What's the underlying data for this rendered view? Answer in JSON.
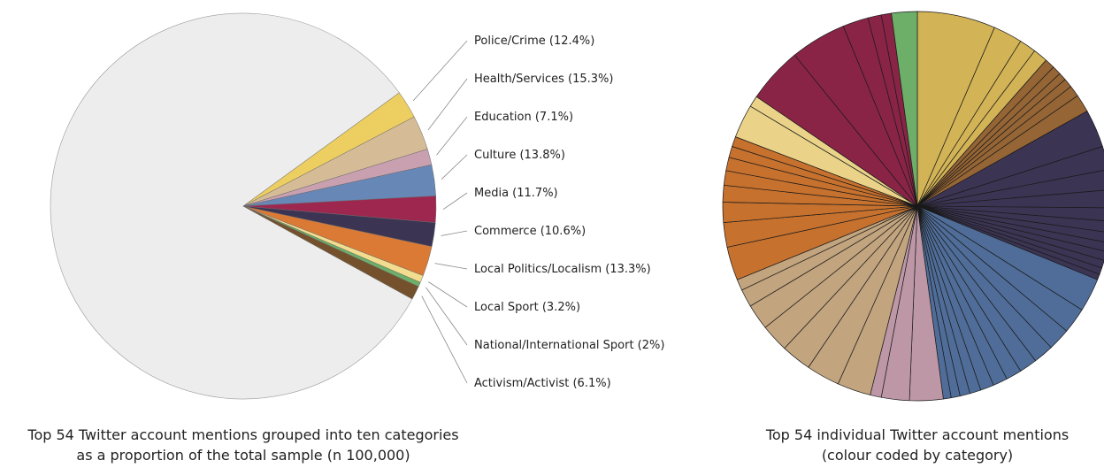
{
  "chart_data": [
    {
      "type": "pie",
      "title": "Top 54 Twitter account mentions grouped into ten categories as a proportion of the total sample (n 100,000)",
      "caption_lines": [
        "Top 54 Twitter account mentions grouped into ten categories",
        "as a proportion of the total sample (n 100,000)"
      ],
      "slices": [
        {
          "label": "Police/Crime (12.4%)",
          "category": "Police/Crime",
          "percent_of_top54": 12.4,
          "color": "#EDCE60"
        },
        {
          "label": "Health/Services (15.3%)",
          "category": "Health/Services",
          "percent_of_top54": 15.3,
          "color": "#D6BC96"
        },
        {
          "label": "Education (7.1%)",
          "category": "Education",
          "percent_of_top54": 7.1,
          "color": "#C9A0B0"
        },
        {
          "label": "Culture (13.8%)",
          "category": "Culture",
          "percent_of_top54": 13.8,
          "color": "#6787B7"
        },
        {
          "label": "Media (11.7%)",
          "category": "Media",
          "percent_of_top54": 11.7,
          "color": "#9E2750"
        },
        {
          "label": "Commerce (10.6%)",
          "category": "Commerce",
          "percent_of_top54": 10.6,
          "color": "#3C3453"
        },
        {
          "label": "Local Politics/Localism (13.3%)",
          "category": "Local Politics/Localism",
          "percent_of_top54": 13.3,
          "color": "#DB7A35"
        },
        {
          "label": "Local Sport (3.2%)",
          "category": "Local Sport",
          "percent_of_top54": 3.2,
          "color": "#F2DC8E"
        },
        {
          "label": "National/International Sport (2%)",
          "category": "National/International Sport",
          "percent_of_top54": 2.0,
          "color": "#6DAE68"
        },
        {
          "label": "Activism/Activist (6.1%)",
          "category": "Activism/Activist",
          "percent_of_top54": 6.1,
          "color": "#74512C"
        }
      ],
      "top54_share_of_total_percent": 18,
      "remainder_color": "#EDEDED"
    },
    {
      "type": "pie",
      "title": "Top 54 individual Twitter account mentions (colour coded by category)",
      "caption_lines": [
        "Top 54 individual Twitter account mentions",
        "(colour coded by category)"
      ],
      "groups": [
        {
          "category": "Police/Crime",
          "color": "#D2B356",
          "accounts": [
            7.0,
            2.6,
            1.5,
            1.3
          ]
        },
        {
          "category": "Activism/Activist",
          "color": "#956535",
          "accounts": [
            0.9,
            0.8,
            0.7,
            0.8,
            1.0,
            1.6
          ]
        },
        {
          "category": "Commerce",
          "color": "#3B3453",
          "accounts": [
            3.4,
            2.1,
            1.8,
            1.6,
            1.2,
            1.0,
            0.9,
            0.8,
            0.8,
            0.7,
            0.6,
            0.5
          ]
        },
        {
          "category": "Culture",
          "color": "#4F6D98",
          "accounts": [
            3.0,
            2.3,
            2.0,
            1.8,
            1.6,
            1.4,
            1.3,
            1.2,
            1.0,
            0.9,
            0.8,
            0.7
          ]
        },
        {
          "category": "Education",
          "color": "#BD97A6",
          "accounts": [
            3.0,
            2.5,
            1.0
          ]
        },
        {
          "category": "Health/Services",
          "color": "#C2A47E",
          "accounts": [
            3.0,
            3.0,
            2.7,
            2.5,
            2.3,
            1.6,
            1.0
          ]
        },
        {
          "category": "Local Politics/Localism",
          "color": "#C6712E",
          "accounts": [
            3.0,
            2.2,
            1.8,
            1.5,
            1.3,
            1.2,
            1.0,
            0.9
          ]
        },
        {
          "category": "Local Sport",
          "color": "#EAD389",
          "accounts": [
            3.0,
            1.0
          ]
        },
        {
          "category": "Media",
          "color": "#8A2446",
          "accounts": [
            5.0,
            5.0,
            2.3,
            1.2,
            0.9
          ]
        },
        {
          "category": "National/International Sport",
          "color": "#6DAE68",
          "accounts": [
            2.3
          ]
        }
      ]
    }
  ]
}
